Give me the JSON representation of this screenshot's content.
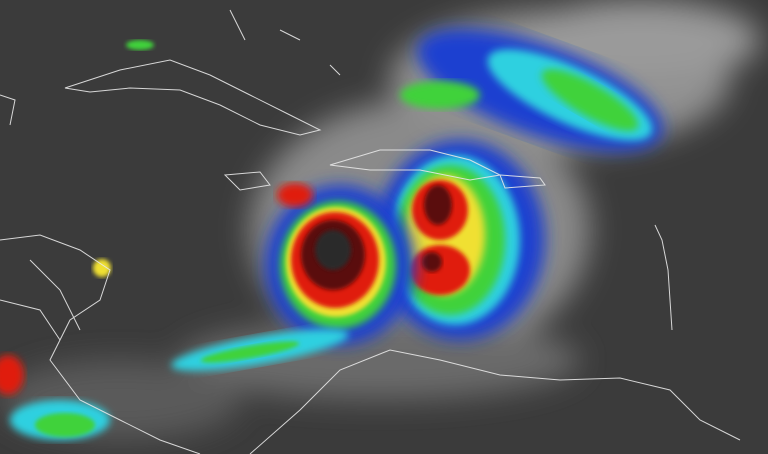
{
  "image": {
    "kind": "infrared satellite imagery",
    "colors": {
      "background": "#3b3b3b",
      "cloud_gray": "#9a9a9a",
      "coastline": "#e8e8e8",
      "enhance_blue": "#1a3fd0",
      "enhance_cyan": "#2fd0e0",
      "enhance_green": "#3fd23a",
      "enhance_yellow": "#f0e030",
      "enhance_red": "#e01a10",
      "enhance_darkred": "#5a0a0a",
      "enhance_gray_core": "#2a2a2a"
    }
  }
}
